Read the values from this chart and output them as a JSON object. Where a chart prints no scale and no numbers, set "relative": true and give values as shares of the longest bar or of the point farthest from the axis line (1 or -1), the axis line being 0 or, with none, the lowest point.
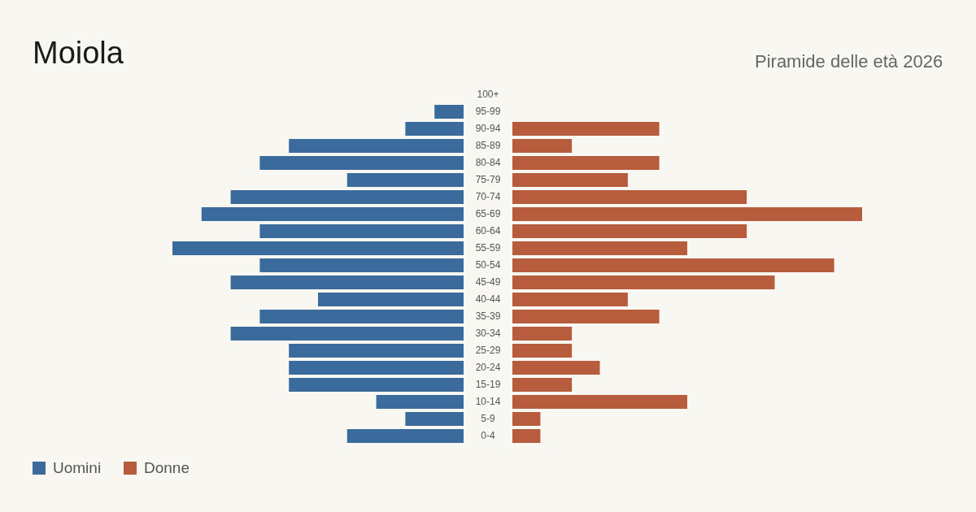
{
  "chart_data": [
    {
      "type": "bar",
      "orientation": "horizontal",
      "relative": true,
      "title": "Moiola",
      "tick_labels": "y",
      "legend": "bottom left",
      "categories": [
        "100+",
        "95-99",
        "90-94",
        "85-89",
        "80-84",
        "75-79",
        "70-74",
        "65-69",
        "60-64",
        "55-59",
        "50-54",
        "45-49",
        "40-44",
        "35-39",
        "30-34",
        "25-29",
        "20-24",
        "15-19",
        "10-14",
        "5-9",
        "0-4"
      ],
      "series": [
        {
          "name": "Uomini",
          "color": "#3a6b9c",
          "values": [
            0,
            0.1,
            0.2,
            0.6,
            0.7,
            0.4,
            0.8,
            0.9,
            0.7,
            1,
            0.7,
            0.8,
            0.5,
            0.7,
            0.8,
            0.6,
            0.6,
            0.6,
            0.3,
            0.2,
            0.4
          ]
        }
      ]
    },
    {
      "type": "bar",
      "orientation": "horizontal",
      "relative": true,
      "subtitle": "Piramide delle età 2026",
      "tick_labels": false,
      "legend": "bottom left",
      "categories": [
        null,
        null,
        null,
        null,
        null,
        null,
        null,
        null,
        null,
        null,
        null,
        null,
        null,
        null,
        null,
        null,
        null,
        null,
        null,
        null,
        null
      ],
      "series": [
        {
          "name": "Donne",
          "color": "#b85c3e",
          "values": [
            0,
            0,
            0.42,
            0.17,
            0.42,
            0.33,
            0.67,
            1,
            0.67,
            0.5,
            0.92,
            0.75,
            0.33,
            0.42,
            0.17,
            0.17,
            0.25,
            0.17,
            0.5,
            0.08,
            0.08
          ]
        }
      ]
    }
  ]
}
